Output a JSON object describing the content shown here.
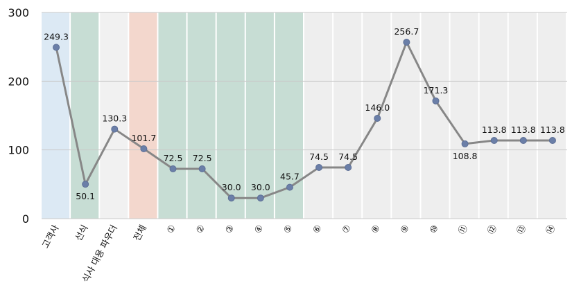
{
  "chart_data": {
    "type": "line",
    "title": "",
    "xlabel": "",
    "ylabel": "",
    "ylim": [
      0,
      300
    ],
    "yticks": [
      "0",
      "100",
      "200",
      "300"
    ],
    "grid": true,
    "legend": "none",
    "categories": [
      "고객사",
      "선식",
      "식사 대용 파우더",
      "전체",
      "①",
      "②",
      "③",
      "④",
      "⑤",
      "⑥",
      "⑦",
      "⑧",
      "⑨",
      "⑩",
      "⑪",
      "⑫",
      "⑬",
      "⑭"
    ],
    "series": [
      {
        "values": [
          249.3,
          50.1,
          130.3,
          101.7,
          72.5,
          72.5,
          30.0,
          30.0,
          45.7,
          74.5,
          74.5,
          146.0,
          256.7,
          171.3,
          108.8,
          113.8,
          113.8,
          113.8
        ]
      }
    ],
    "data_labels": [
      "249.3",
      "50.1",
      "130.3",
      "101.7",
      "72.5",
      "72.5",
      "30.0",
      "30.0",
      "45.7",
      "74.5",
      "74.5",
      "146.0",
      "256.7",
      "171.3",
      "108.8",
      "113.8",
      "113.8",
      "113.8"
    ],
    "band_colors": [
      "#dce9f4",
      "#c7ddd4",
      "#f1f1f1",
      "#f3d7cd",
      "#c7ddd4",
      "#c7ddd4",
      "#c7ddd4",
      "#c7ddd4",
      "#c7ddd4",
      "#eeeeee",
      "#eeeeee",
      "#eeeeee",
      "#eeeeee",
      "#eeeeee",
      "#eeeeee",
      "#eeeeee",
      "#eeeeee",
      "#eeeeee"
    ],
    "line_color": "#878787",
    "marker_color": "#6b7fa8"
  }
}
